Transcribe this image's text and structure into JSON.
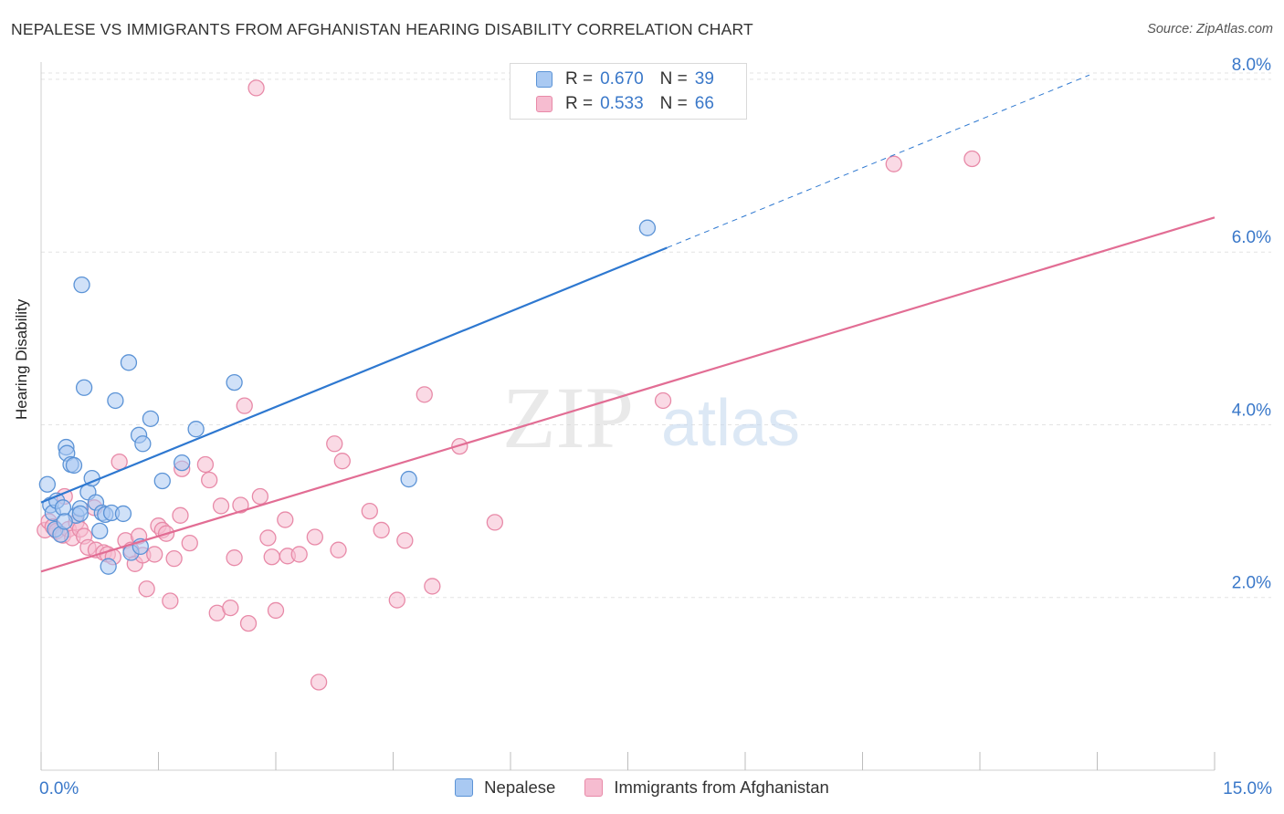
{
  "header": {
    "title": "NEPALESE VS IMMIGRANTS FROM AFGHANISTAN HEARING DISABILITY CORRELATION CHART",
    "source": "Source: ZipAtlas.com"
  },
  "legend": {
    "items": [
      {
        "r_label": "R =",
        "r_value": "0.670",
        "n_label": "N =",
        "n_value": "39"
      },
      {
        "r_label": "R =",
        "r_value": "0.533",
        "n_label": "N =",
        "n_value": "66"
      }
    ]
  },
  "watermark": {
    "zip": "ZIP",
    "atlas": "atlas"
  },
  "colors": {
    "blue_fill": "#a9c9f2",
    "blue_stroke": "#5b93d6",
    "blue_line": "#2e78d0",
    "pink_fill": "#f6bcd0",
    "pink_stroke": "#e88aa8",
    "pink_line": "#e26d94",
    "tick_label": "#3a78c9",
    "grid": "#e3e3e3"
  },
  "chart_data": {
    "type": "scatter",
    "title": "NEPALESE VS IMMIGRANTS FROM AFGHANISTAN HEARING DISABILITY CORRELATION CHART",
    "xlabel": "",
    "ylabel": "Hearing Disability",
    "xlim": [
      0,
      15
    ],
    "ylim": [
      0,
      8.2
    ],
    "x_tick_labels": [
      {
        "value": 0,
        "label": "0.0%"
      },
      {
        "value": 15,
        "label": "15.0%"
      }
    ],
    "x_minor_ticks": [
      0,
      1.5,
      3,
      4.5,
      6,
      7.5,
      9,
      10.5,
      12,
      13.5,
      15
    ],
    "y_ticks": [
      {
        "value": 2,
        "label": "2.0%"
      },
      {
        "value": 4,
        "label": "4.0%"
      },
      {
        "value": 6,
        "label": "6.0%"
      },
      {
        "value": 8,
        "label": "8.0%"
      }
    ],
    "grid": true,
    "legend_position": "top-center",
    "series": [
      {
        "name": "Nepalese",
        "color_key": "blue",
        "R": 0.67,
        "N": 39,
        "trend": {
          "x0": 0,
          "y0": 3.1,
          "x1": 8,
          "y1": 6.05,
          "dashed_to_x": 13.4,
          "dashed_to_y": 8.05
        },
        "points": [
          [
            0.08,
            3.31
          ],
          [
            0.12,
            3.07
          ],
          [
            0.15,
            2.98
          ],
          [
            0.18,
            2.79
          ],
          [
            0.2,
            3.12
          ],
          [
            0.25,
            2.73
          ],
          [
            0.28,
            3.04
          ],
          [
            0.32,
            3.74
          ],
          [
            0.33,
            3.67
          ],
          [
            0.38,
            3.54
          ],
          [
            0.42,
            3.53
          ],
          [
            0.45,
            2.95
          ],
          [
            0.5,
            3.03
          ],
          [
            0.52,
            5.62
          ],
          [
            0.55,
            4.43
          ],
          [
            0.6,
            3.22
          ],
          [
            0.65,
            3.38
          ],
          [
            0.7,
            3.1
          ],
          [
            0.75,
            2.77
          ],
          [
            0.78,
            2.98
          ],
          [
            0.82,
            2.96
          ],
          [
            0.86,
            2.36
          ],
          [
            0.9,
            2.98
          ],
          [
            0.95,
            4.28
          ],
          [
            1.05,
            2.97
          ],
          [
            1.12,
            4.72
          ],
          [
            1.15,
            2.52
          ],
          [
            1.25,
            3.88
          ],
          [
            1.27,
            2.59
          ],
          [
            1.3,
            3.78
          ],
          [
            1.4,
            4.07
          ],
          [
            1.55,
            3.35
          ],
          [
            1.8,
            3.56
          ],
          [
            1.98,
            3.95
          ],
          [
            2.47,
            4.49
          ],
          [
            4.7,
            3.37
          ],
          [
            7.75,
            6.28
          ],
          [
            0.5,
            2.97
          ],
          [
            0.3,
            2.88
          ]
        ]
      },
      {
        "name": "Immigrants from Afghanistan",
        "color_key": "pink",
        "R": 0.533,
        "N": 66,
        "trend": {
          "x0": 0,
          "y0": 2.3,
          "x1": 15,
          "y1": 6.4
        },
        "points": [
          [
            0.05,
            2.78
          ],
          [
            0.1,
            2.88
          ],
          [
            0.15,
            2.82
          ],
          [
            0.2,
            2.77
          ],
          [
            0.28,
            2.72
          ],
          [
            0.3,
            3.17
          ],
          [
            0.35,
            2.79
          ],
          [
            0.4,
            2.69
          ],
          [
            0.45,
            2.87
          ],
          [
            0.5,
            2.79
          ],
          [
            0.55,
            2.71
          ],
          [
            0.6,
            2.58
          ],
          [
            0.68,
            3.04
          ],
          [
            0.7,
            2.55
          ],
          [
            0.8,
            2.52
          ],
          [
            0.85,
            2.5
          ],
          [
            0.92,
            2.47
          ],
          [
            1.0,
            3.57
          ],
          [
            1.08,
            2.66
          ],
          [
            1.15,
            2.55
          ],
          [
            1.2,
            2.39
          ],
          [
            1.25,
            2.71
          ],
          [
            1.3,
            2.49
          ],
          [
            1.35,
            2.1
          ],
          [
            1.45,
            2.5
          ],
          [
            1.5,
            2.83
          ],
          [
            1.55,
            2.78
          ],
          [
            1.6,
            2.74
          ],
          [
            1.65,
            1.96
          ],
          [
            1.7,
            2.45
          ],
          [
            1.78,
            2.95
          ],
          [
            1.8,
            3.49
          ],
          [
            1.9,
            2.63
          ],
          [
            2.1,
            3.54
          ],
          [
            2.15,
            3.36
          ],
          [
            2.25,
            1.82
          ],
          [
            2.3,
            3.06
          ],
          [
            2.42,
            1.88
          ],
          [
            2.47,
            2.46
          ],
          [
            2.55,
            3.07
          ],
          [
            2.6,
            4.22
          ],
          [
            2.65,
            1.7
          ],
          [
            2.75,
            7.9
          ],
          [
            2.8,
            3.17
          ],
          [
            2.9,
            2.69
          ],
          [
            2.95,
            2.47
          ],
          [
            3.0,
            1.85
          ],
          [
            3.12,
            2.9
          ],
          [
            3.15,
            2.48
          ],
          [
            3.3,
            2.5
          ],
          [
            3.5,
            2.7
          ],
          [
            3.55,
            1.02
          ],
          [
            3.75,
            3.78
          ],
          [
            3.8,
            2.55
          ],
          [
            3.85,
            3.58
          ],
          [
            4.2,
            3.0
          ],
          [
            4.35,
            2.78
          ],
          [
            4.55,
            1.97
          ],
          [
            4.65,
            2.66
          ],
          [
            4.9,
            4.35
          ],
          [
            5.0,
            2.13
          ],
          [
            5.35,
            3.75
          ],
          [
            5.8,
            2.87
          ],
          [
            7.95,
            4.28
          ],
          [
            10.9,
            7.02
          ],
          [
            11.9,
            7.08
          ]
        ]
      }
    ]
  }
}
